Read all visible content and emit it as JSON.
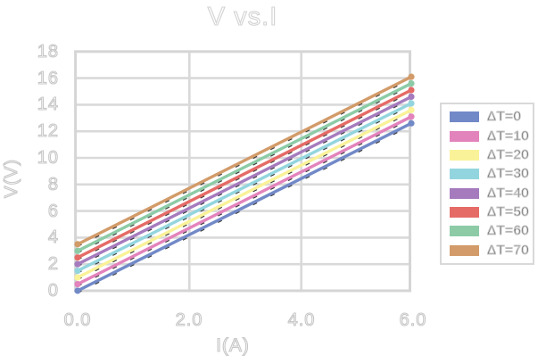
{
  "chart_data": {
    "type": "line",
    "title": "V vs.I",
    "xlabel": "I(A)",
    "ylabel": "V(V)",
    "xlim": [
      0,
      6
    ],
    "ylim": [
      0,
      18
    ],
    "xticks": [
      0.0,
      2.0,
      4.0,
      6.0
    ],
    "yticks": [
      0,
      2,
      4,
      6,
      8,
      10,
      12,
      14,
      16,
      18
    ],
    "xtick_labels": [
      "0.0",
      "2.0",
      "4.0",
      "6.0"
    ],
    "ytick_labels_top_to_bottom": [
      "18",
      "16",
      "14",
      "12",
      "10",
      "8",
      "6",
      "4",
      "2",
      "0"
    ],
    "grid": true,
    "legend_position": "right-outside",
    "marker": "dot-at-endpoints",
    "line_style": "solid with faint black dashed underlay",
    "x": [
      0,
      6
    ],
    "series": [
      {
        "label": "ΔT=0",
        "color": "#7289C7",
        "values": [
          0.0,
          12.6
        ]
      },
      {
        "label": "ΔT=10",
        "color": "#E383BC",
        "values": [
          0.5,
          13.1
        ]
      },
      {
        "label": "ΔT=20",
        "color": "#FAF298",
        "values": [
          1.0,
          13.6
        ]
      },
      {
        "label": "ΔT=30",
        "color": "#93D5DE",
        "values": [
          1.5,
          14.1
        ]
      },
      {
        "label": "ΔT=40",
        "color": "#A57BBE",
        "values": [
          2.0,
          14.6
        ]
      },
      {
        "label": "ΔT=50",
        "color": "#E56B66",
        "values": [
          2.5,
          15.1
        ]
      },
      {
        "label": "ΔT=60",
        "color": "#8CCBA6",
        "values": [
          3.0,
          15.6
        ]
      },
      {
        "label": "ΔT=70",
        "color": "#D29B69",
        "values": [
          3.5,
          16.1
        ]
      }
    ],
    "text_style": "hollow outlined light-gray glyphs",
    "grid_color": "#d9d9d9"
  }
}
